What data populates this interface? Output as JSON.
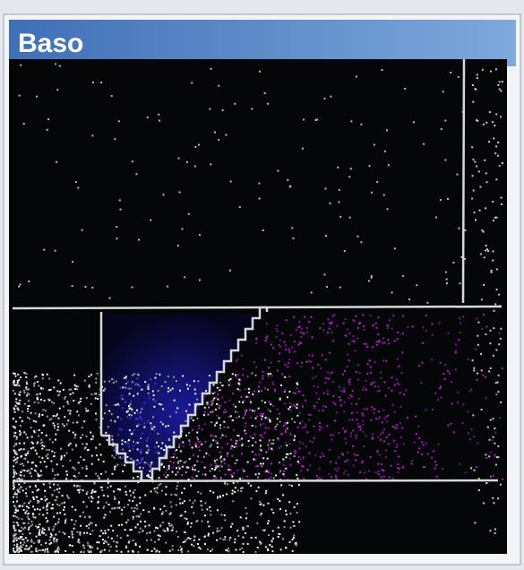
{
  "window": {
    "title": "Baso"
  }
}
